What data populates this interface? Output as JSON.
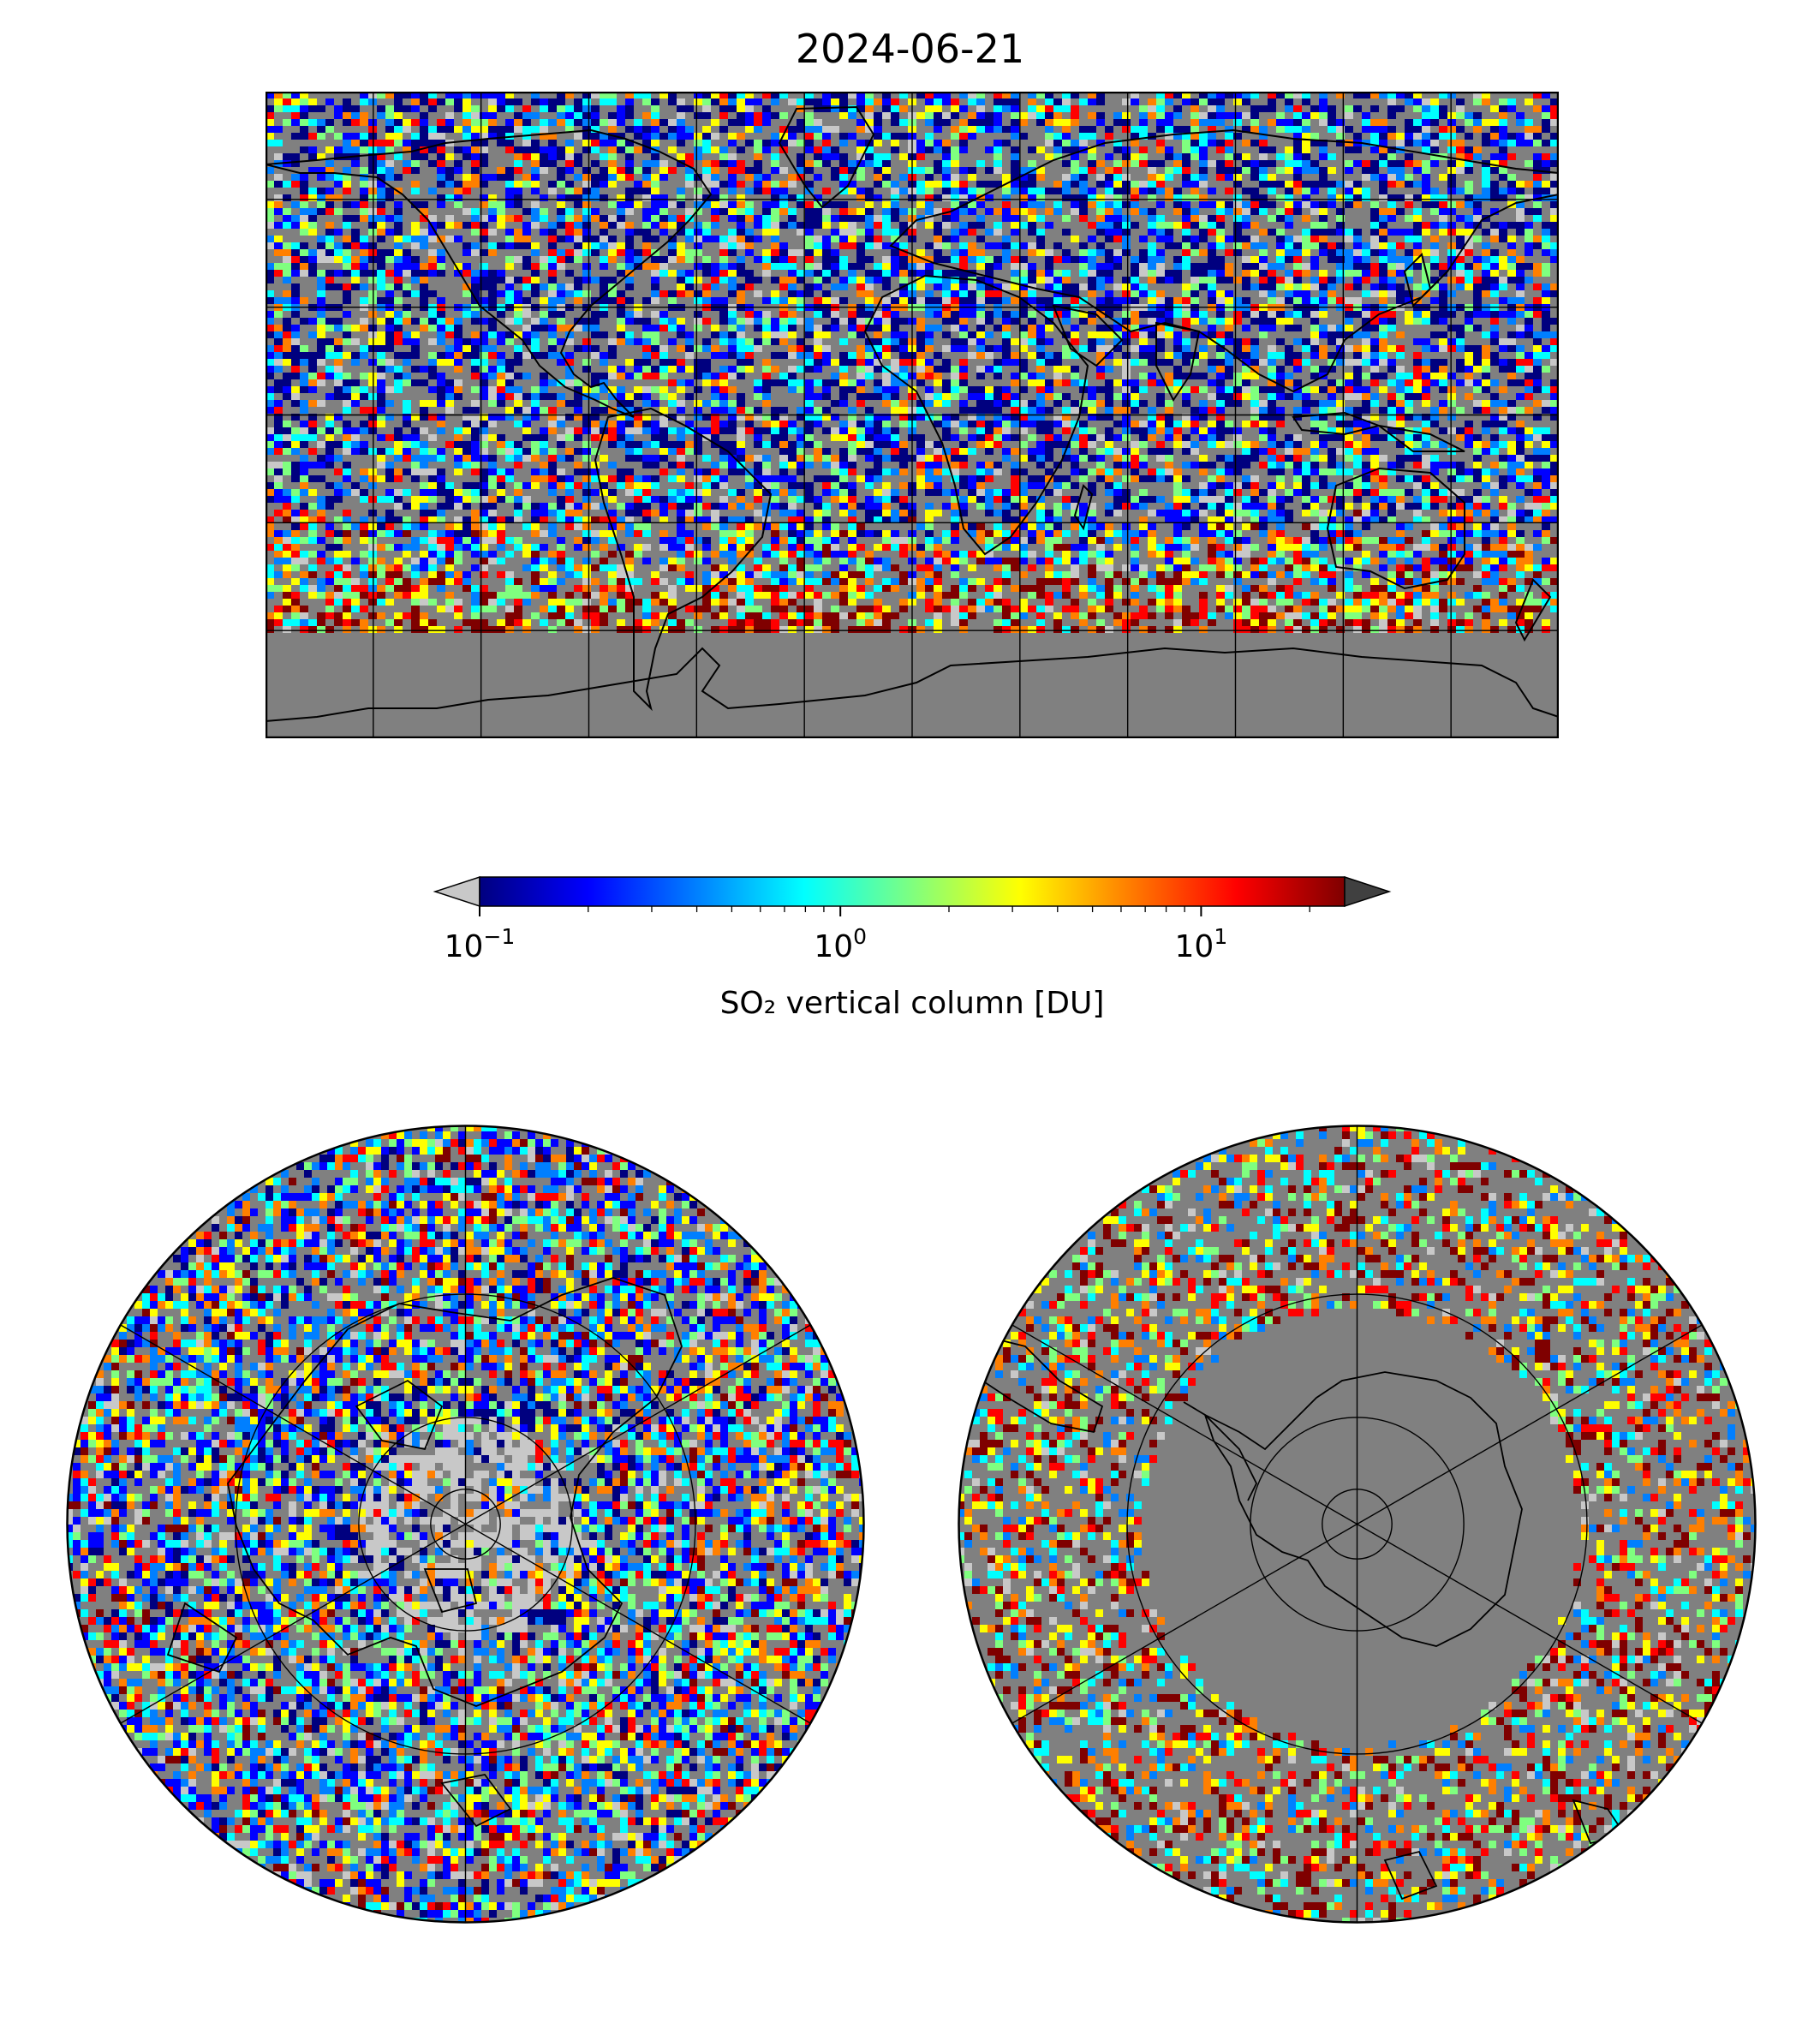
{
  "title": "2024-06-21",
  "colorbar": {
    "label": "SO₂ vertical column [DU]",
    "scale": "log",
    "min": 0.1,
    "max": 25,
    "extend": "both",
    "ticks": [
      {
        "value": 0.1,
        "base": "10",
        "exp": "−1"
      },
      {
        "value": 1,
        "base": "10",
        "exp": "0"
      },
      {
        "value": 10,
        "base": "10",
        "exp": "1"
      }
    ],
    "colors": {
      "under": "#c8c8c8",
      "over": "#404040",
      "stops": [
        "#00007f",
        "#0000ff",
        "#007fff",
        "#00ffff",
        "#7fff7f",
        "#ffff00",
        "#ff7f00",
        "#ff0000",
        "#7f0000"
      ]
    }
  },
  "maps": {
    "world": {
      "projection": "plate-carree",
      "lon_range": [
        -180,
        180
      ],
      "lat_range": [
        -90,
        90
      ],
      "gridline_spacing_deg": 30
    },
    "north_polar": {
      "projection": "north-polar-stereographic",
      "lat_limit": 0,
      "gridline_spacing_deg": 30
    },
    "south_polar": {
      "projection": "south-polar-stereographic",
      "lat_limit": 0,
      "gridline_spacing_deg": 30
    }
  },
  "colors": {
    "no_data": "#808080",
    "coastline": "#000000",
    "gridline": "#000000",
    "background": "#ffffff"
  }
}
